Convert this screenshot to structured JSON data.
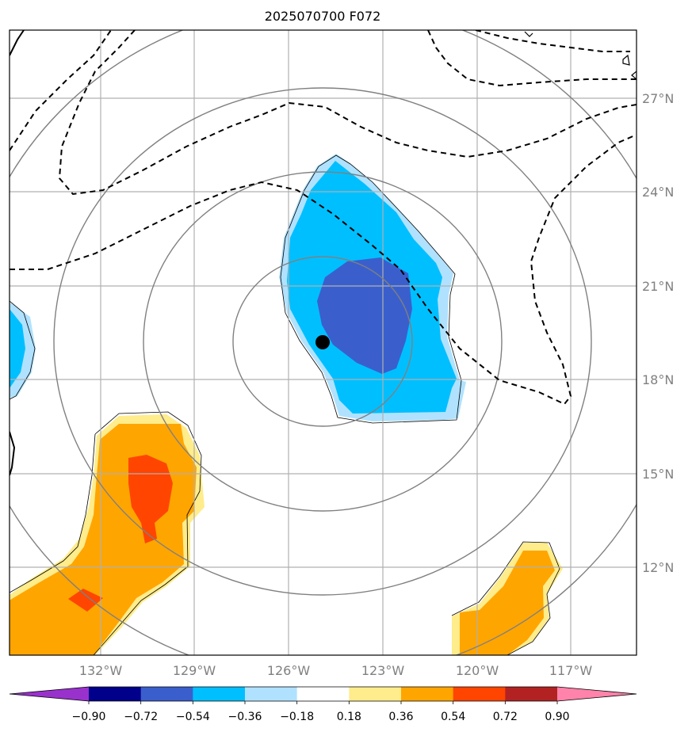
{
  "chart_data": {
    "type": "map",
    "title": "2025070700 F072",
    "x_ticks": [
      "132°W",
      "129°W",
      "126°W",
      "123°W",
      "120°W",
      "117°W"
    ],
    "x_tick_values": [
      -132,
      -129,
      -126,
      -123,
      -120,
      -117
    ],
    "y_ticks": [
      "27°N",
      "24°N",
      "21°N",
      "18°N",
      "15°N",
      "12°N"
    ],
    "y_tick_values": [
      27,
      24,
      21,
      18,
      15,
      12
    ],
    "lon_range": [
      -134.5,
      -114.5
    ],
    "lat_range": [
      9.8,
      29.8
    ],
    "grid": true,
    "storm_center": {
      "lon": -125.0,
      "lat": 19.2
    },
    "range_rings_count": 4,
    "colorbar": {
      "labels": [
        "−0.90",
        "−0.72",
        "−0.54",
        "−0.36",
        "−0.18",
        "0.18",
        "0.36",
        "0.54",
        "0.72",
        "0.90"
      ],
      "boundaries": [
        -0.9,
        -0.72,
        -0.54,
        -0.36,
        -0.18,
        0.18,
        0.36,
        0.54,
        0.72,
        0.9
      ],
      "colors": [
        "#9932cc",
        "#00008b",
        "#3a5fcd",
        "#00bfff",
        "#b0e2ff",
        "#ffffff",
        "#ffec8b",
        "#ffa500",
        "#ff4500",
        "#b22222",
        "#ff83aa"
      ],
      "extend": "both"
    }
  }
}
